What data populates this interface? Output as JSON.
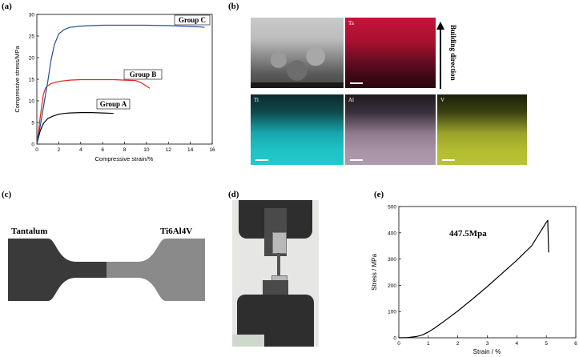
{
  "panels": {
    "a": "(a)",
    "b": "(b)",
    "c": "(c)",
    "d": "(d)",
    "e": "(e)"
  },
  "chart_data": [
    {
      "type": "line",
      "panel": "a",
      "xlabel": "Compressive strain/%",
      "ylabel": "Compressive stress/MPa",
      "xlim": [
        0,
        16
      ],
      "ylim": [
        0,
        30
      ],
      "xticks": [
        "0",
        "2",
        "4",
        "6",
        "8",
        "10",
        "12",
        "14",
        "16"
      ],
      "yticks": [
        "0",
        "5",
        "10",
        "15",
        "20",
        "25",
        "30"
      ],
      "grid": false,
      "series": [
        {
          "name": "Group A",
          "color": "#000000",
          "x": [
            0,
            0.3,
            0.6,
            1.0,
            1.5,
            2.0,
            2.5,
            3.0,
            4.0,
            5.0,
            6.0,
            7.0
          ],
          "y": [
            0,
            3.0,
            4.8,
            5.9,
            6.5,
            6.9,
            7.1,
            7.2,
            7.3,
            7.3,
            7.2,
            7.1
          ]
        },
        {
          "name": "Group B",
          "color": "#e8211a",
          "x": [
            0,
            0.2,
            0.4,
            0.6,
            0.8,
            1.0,
            1.3,
            2.0,
            3.0,
            4.0,
            5.0,
            6.0,
            7.0,
            8.0,
            9.0,
            9.5,
            10.0,
            10.3
          ],
          "y": [
            0,
            4.0,
            8.0,
            11.5,
            13.0,
            13.5,
            14.0,
            14.5,
            14.8,
            14.9,
            14.9,
            14.9,
            14.9,
            14.8,
            14.7,
            14.2,
            13.4,
            12.9
          ]
        },
        {
          "name": "Group C",
          "color": "#1d4f9c",
          "x": [
            0,
            0.3,
            0.6,
            1.0,
            1.3,
            1.6,
            2.0,
            2.5,
            3.0,
            4.0,
            5.0,
            6.0,
            8.0,
            10.0,
            12.0,
            14.0,
            15.0,
            15.3
          ],
          "y": [
            0,
            4.0,
            8.5,
            14.5,
            19.5,
            23.0,
            25.5,
            26.5,
            27.0,
            27.3,
            27.4,
            27.5,
            27.5,
            27.5,
            27.4,
            27.2,
            27.1,
            27.0
          ]
        }
      ],
      "annotations": [
        "Group A",
        "Group B",
        "Group C"
      ]
    },
    {
      "type": "line",
      "panel": "e",
      "xlabel": "Strain / %",
      "ylabel": "Stress / MPa",
      "xlim": [
        0,
        6
      ],
      "ylim": [
        0,
        500
      ],
      "xticks": [
        "0",
        "1",
        "2",
        "3",
        "4",
        "5",
        "6"
      ],
      "yticks": [
        "0",
        "100",
        "200",
        "300",
        "400",
        "500"
      ],
      "grid": false,
      "series": [
        {
          "color": "#000000",
          "x": [
            0,
            0.3,
            0.6,
            0.8,
            1.0,
            1.2,
            1.5,
            2.0,
            2.5,
            3.0,
            3.5,
            4.0,
            4.5,
            5.0,
            5.05,
            5.08
          ],
          "y": [
            0,
            1,
            5,
            11,
            22,
            36,
            60,
            102,
            148,
            195,
            245,
            295,
            350,
            440,
            447.5,
            325
          ]
        }
      ],
      "annotation": "447.5Mpa"
    }
  ],
  "eds": {
    "labels": [
      "Ta",
      "Ti",
      "Al",
      "V"
    ],
    "arrow_label": "Building direction"
  },
  "specimen": {
    "left_label": "Tantalum",
    "right_label": "Ti6Al4V",
    "colors": {
      "tantalum": "#3a3a3a",
      "ti6al4v": "#8a8a8a"
    }
  }
}
